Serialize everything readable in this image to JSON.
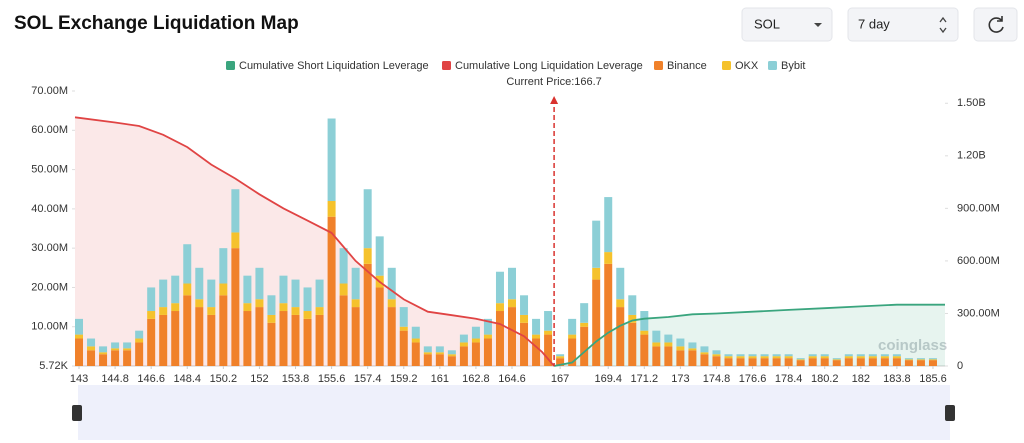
{
  "controls": {
    "coin": "SOL",
    "period": "7 day"
  },
  "chart_data": {
    "type": "bar",
    "title": "SOL Exchange Liquidation Map",
    "stacked": true,
    "annotation": "Current Price:166.7",
    "current_price": 166.7,
    "watermark": "coinglass",
    "x": [
      143,
      143.6,
      144.2,
      144.8,
      145.4,
      146,
      146.6,
      147.2,
      147.8,
      148.4,
      149,
      149.6,
      150.2,
      150.8,
      151.4,
      152,
      152.6,
      153.2,
      153.8,
      154.4,
      155,
      155.6,
      156.2,
      156.8,
      157.4,
      158,
      158.6,
      159.2,
      159.8,
      160.4,
      161,
      161.6,
      162.2,
      162.8,
      163.4,
      164,
      164.6,
      165.2,
      165.8,
      166.4,
      167,
      167.6,
      168.2,
      168.8,
      169.4,
      170,
      170.6,
      171.2,
      171.8,
      172.4,
      173,
      173.6,
      174.2,
      174.8,
      175.4,
      176,
      176.6,
      177.2,
      177.8,
      178.4,
      179,
      179.6,
      180.2,
      180.8,
      181.4,
      182,
      182.6,
      183.2,
      183.8,
      184.4,
      185,
      185.6
    ],
    "xlim": [
      142.8,
      186.2
    ],
    "xticks": [
      143,
      144.8,
      146.6,
      148.4,
      150.2,
      152,
      153.8,
      155.6,
      157.4,
      159.2,
      161,
      162.8,
      164.6,
      167,
      169.4,
      171.2,
      173,
      174.8,
      176.6,
      178.4,
      180.2,
      182,
      183.8,
      185.6
    ],
    "ylim": [
      0.00572,
      70
    ],
    "yticks": [
      {
        "value": 0.00572,
        "label": "5.72K"
      },
      {
        "value": 10,
        "label": "10.00M"
      },
      {
        "value": 20,
        "label": "20.00M"
      },
      {
        "value": 30,
        "label": "30.00M"
      },
      {
        "value": 40,
        "label": "40.00M"
      },
      {
        "value": 50,
        "label": "50.00M"
      },
      {
        "value": 60,
        "label": "60.00M"
      },
      {
        "value": 70,
        "label": "70.00M"
      }
    ],
    "y2lim": [
      0,
      1570
    ],
    "y2ticks": [
      0,
      {
        "value": 300,
        "label": "300.00M"
      },
      {
        "value": 600,
        "label": "600.00M"
      },
      {
        "value": 900,
        "label": "900.00M"
      },
      {
        "value": 1200,
        "label": "1.20B"
      },
      {
        "value": 1500,
        "label": "1.50B"
      }
    ],
    "series": [
      {
        "name": "Cumulative Short Liquidation Leverage",
        "type": "line",
        "axis": "y2",
        "color": "#3aa57e",
        "x": [
          166.7,
          167.6,
          168.2,
          168.8,
          169.4,
          170,
          170.6,
          171.2,
          172.4,
          173.6,
          174.8,
          176.6,
          178.4,
          180.2,
          182,
          183.8,
          185.6,
          186.2
        ],
        "values": [
          0,
          20,
          80,
          140,
          190,
          230,
          260,
          270,
          280,
          295,
          300,
          310,
          320,
          330,
          340,
          350,
          350,
          350
        ]
      },
      {
        "name": "Cumulative Long Liquidation Leverage",
        "type": "line",
        "axis": "y2",
        "color": "#e04444",
        "x": [
          142.8,
          144.8,
          146,
          147.2,
          148.4,
          149.6,
          150.8,
          152,
          153.2,
          154.4,
          155.6,
          156.8,
          158,
          159.2,
          160.4,
          161.6,
          162.8,
          164,
          165.2,
          166.1,
          166.7
        ],
        "values": [
          1420,
          1390,
          1370,
          1320,
          1250,
          1150,
          1070,
          980,
          900,
          830,
          760,
          600,
          480,
          380,
          310,
          290,
          270,
          240,
          170,
          80,
          0
        ]
      },
      {
        "name": "Binance",
        "color": "#f0812a",
        "values": [
          7,
          4,
          3,
          4,
          4,
          6,
          12,
          13,
          14,
          18,
          15,
          13,
          18,
          30,
          14,
          15,
          11,
          14,
          13,
          12,
          13,
          38,
          18,
          15,
          26,
          20,
          15,
          9,
          6,
          3,
          3,
          2.5,
          5,
          6,
          7,
          14,
          15,
          11,
          7,
          8,
          2,
          7,
          10,
          22,
          26,
          15,
          11,
          8,
          5,
          5,
          4,
          4,
          3,
          2.5,
          2,
          2,
          2,
          2,
          2,
          2,
          1.5,
          2,
          2,
          1.5,
          2,
          2,
          2,
          2,
          2,
          1.5,
          1.5,
          1.5
        ]
      },
      {
        "name": "OKX",
        "color": "#f5c22c",
        "values": [
          1,
          1,
          0.5,
          0.5,
          0.5,
          1,
          2,
          2,
          2,
          3,
          2,
          2,
          3,
          4,
          2,
          2,
          2,
          2,
          2,
          2,
          2,
          4,
          3,
          2,
          4,
          3,
          2,
          1,
          1,
          0.5,
          0.5,
          0.5,
          1,
          1,
          1,
          2,
          2,
          2,
          1,
          1,
          0.5,
          1,
          1,
          3,
          3,
          2,
          2,
          1,
          1,
          1,
          1,
          0.5,
          0.5,
          0.5,
          0.5,
          0.5,
          0.5,
          0.5,
          0.5,
          0.5,
          0.2,
          0.5,
          0.5,
          0.2,
          0.5,
          0.5,
          0.5,
          0.5,
          0.5,
          0.2,
          0.2,
          0.2
        ]
      },
      {
        "name": "Bybit",
        "color": "#8ccfd6",
        "values": [
          4,
          2,
          1.5,
          1.5,
          1.5,
          2,
          6,
          7,
          7,
          10,
          8,
          7,
          9,
          11,
          7,
          8,
          5,
          7,
          7,
          6,
          7,
          21,
          9,
          8,
          15,
          10,
          8,
          5,
          3,
          1.5,
          1.5,
          1,
          2,
          3,
          4,
          8,
          8,
          5,
          4,
          5,
          0.5,
          4,
          5,
          12,
          14,
          8,
          5,
          5,
          3,
          2,
          2,
          1.5,
          1.5,
          1,
          0.5,
          0.5,
          0.5,
          0.5,
          0.5,
          0.5,
          0.3,
          0.5,
          0.5,
          0.3,
          0.5,
          0.5,
          0.5,
          0.5,
          0.5,
          0.3,
          0.3,
          0.3
        ]
      }
    ]
  }
}
